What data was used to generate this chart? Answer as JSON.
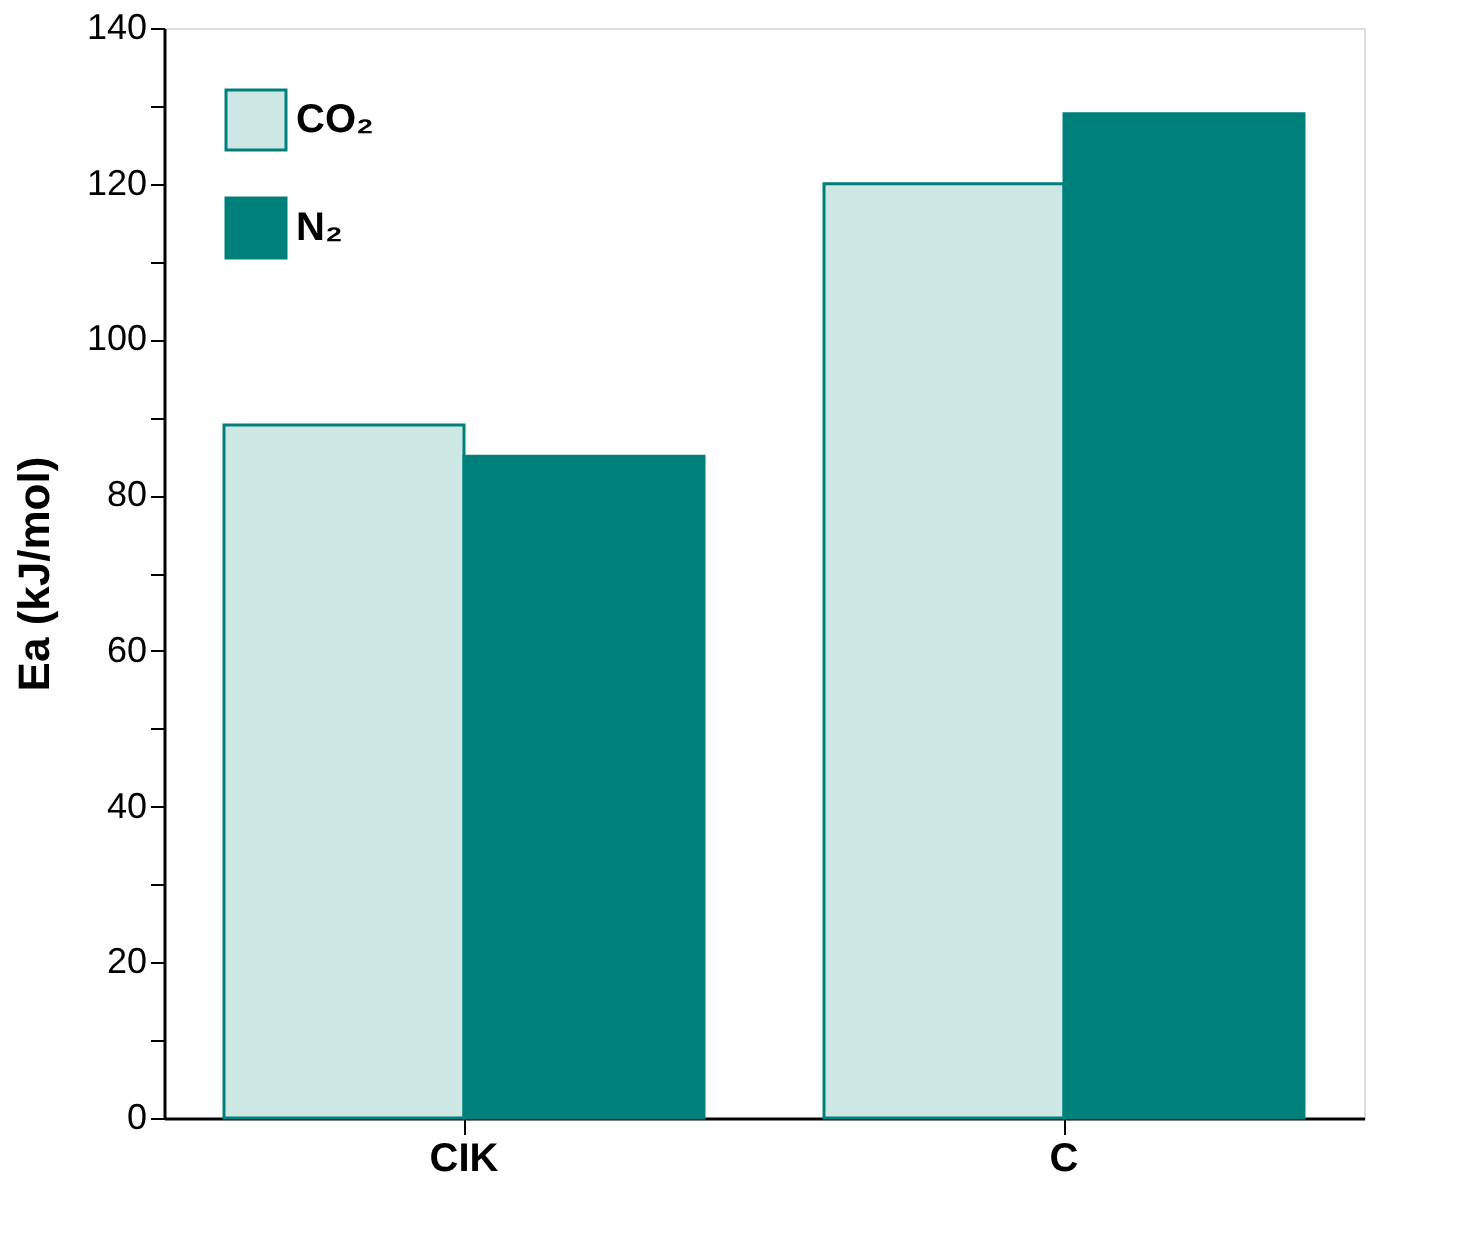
{
  "chart_data": {
    "type": "bar",
    "ylabel": "Ea (kJ/mol)",
    "categories": [
      "CIK",
      "C"
    ],
    "series": [
      {
        "name": "CO₂",
        "color": "#cde7e5",
        "values": [
          89,
          120
        ]
      },
      {
        "name": "N₂",
        "color": "#00807a",
        "values": [
          85,
          129
        ]
      }
    ],
    "ylim": [
      0,
      140
    ],
    "yticks": [
      0,
      {
        "value": 10,
        "label": null
      },
      20,
      {
        "value": 30,
        "label": null
      },
      40,
      {
        "value": 50,
        "label": null
      },
      60,
      {
        "value": 70,
        "label": null
      },
      80,
      {
        "value": 90,
        "label": null
      },
      100,
      {
        "value": 110,
        "label": null
      },
      120,
      {
        "value": 130,
        "label": null
      },
      140
    ],
    "grid": false,
    "legend": "top left"
  }
}
